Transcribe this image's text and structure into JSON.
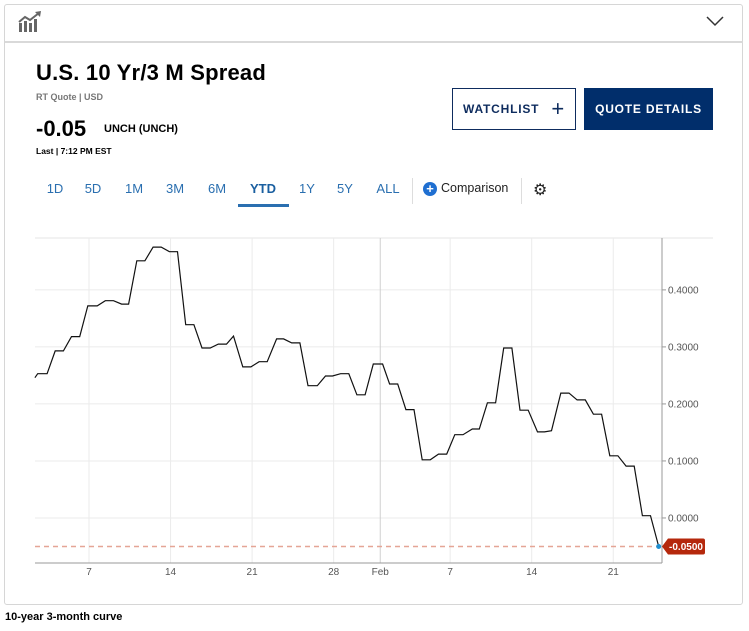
{
  "header": {
    "icon": "chart-growth-icon",
    "collapse_icon": "chevron-down-icon"
  },
  "quote": {
    "title": "U.S. 10 Yr/3 M Spread",
    "subtitle": "RT Quote | USD",
    "price": "-0.05",
    "change": "UNCH (UNCH)",
    "last": "Last | 7:12 PM EST"
  },
  "buttons": {
    "watchlist": "WATCHLIST",
    "watchlist_icon": "+",
    "quote_details": "QUOTE DETAILS"
  },
  "tabs": [
    {
      "label": "1D"
    },
    {
      "label": "5D"
    },
    {
      "label": "1M"
    },
    {
      "label": "3M"
    },
    {
      "label": "6M"
    },
    {
      "label": "YTD",
      "active": true
    },
    {
      "label": "1Y"
    },
    {
      "label": "5Y"
    },
    {
      "label": "ALL"
    }
  ],
  "comparison": {
    "label": "Comparison",
    "icon": "+"
  },
  "settings_icon": "⚙",
  "caption": "10-year 3-month curve",
  "colors": {
    "accent": "#2a6fb0",
    "navy": "#012e6b",
    "last_tag": "#b5280c",
    "dashed": "#e5a596"
  },
  "chart_data": {
    "type": "line",
    "title": "U.S. 10 Yr/3 M Spread YTD",
    "xlabel": "",
    "ylabel": "",
    "x_unit": "day of year",
    "xlim": [
      2.36,
      56.2
    ],
    "ylim": [
      -0.079,
      0.491
    ],
    "grid": true,
    "x_ticks": [
      {
        "day": 7,
        "label": "7"
      },
      {
        "day": 14,
        "label": "14"
      },
      {
        "day": 21,
        "label": "21"
      },
      {
        "day": 28,
        "label": "28"
      },
      {
        "day": 32,
        "label": "Feb"
      },
      {
        "day": 38,
        "label": "7"
      },
      {
        "day": 45,
        "label": "14"
      },
      {
        "day": 52,
        "label": "21"
      }
    ],
    "y_ticks": [
      {
        "v": 0.4,
        "label": "0.4000"
      },
      {
        "v": 0.3,
        "label": "0.3000"
      },
      {
        "v": 0.2,
        "label": "0.2000"
      },
      {
        "v": 0.1,
        "label": "0.1000"
      },
      {
        "v": 0.0,
        "label": "0.0000"
      }
    ],
    "last_value": {
      "v": -0.05,
      "label": "-0.0500"
    },
    "points": [
      [
        2.36,
        0.246
      ],
      [
        2.6,
        0.253
      ],
      [
        3.4,
        0.253
      ],
      [
        4.1,
        0.293
      ],
      [
        4.8,
        0.293
      ],
      [
        5.5,
        0.318
      ],
      [
        6.2,
        0.318
      ],
      [
        6.9,
        0.372
      ],
      [
        7.7,
        0.372
      ],
      [
        8.4,
        0.381
      ],
      [
        9.1,
        0.381
      ],
      [
        9.8,
        0.375
      ],
      [
        10.4,
        0.375
      ],
      [
        11.1,
        0.451
      ],
      [
        11.8,
        0.451
      ],
      [
        12.5,
        0.475
      ],
      [
        13.2,
        0.475
      ],
      [
        13.9,
        0.467
      ],
      [
        14.6,
        0.467
      ],
      [
        15.3,
        0.339
      ],
      [
        16.0,
        0.339
      ],
      [
        16.7,
        0.298
      ],
      [
        17.4,
        0.298
      ],
      [
        18.1,
        0.305
      ],
      [
        18.8,
        0.305
      ],
      [
        19.4,
        0.319
      ],
      [
        20.2,
        0.265
      ],
      [
        20.9,
        0.265
      ],
      [
        21.6,
        0.274
      ],
      [
        22.3,
        0.274
      ],
      [
        23.1,
        0.314
      ],
      [
        23.7,
        0.314
      ],
      [
        24.4,
        0.307
      ],
      [
        25.1,
        0.307
      ],
      [
        25.8,
        0.232
      ],
      [
        26.6,
        0.232
      ],
      [
        27.3,
        0.249
      ],
      [
        27.9,
        0.249
      ],
      [
        28.6,
        0.253
      ],
      [
        29.3,
        0.253
      ],
      [
        30.0,
        0.216
      ],
      [
        30.7,
        0.216
      ],
      [
        31.4,
        0.27
      ],
      [
        32.2,
        0.27
      ],
      [
        32.8,
        0.235
      ],
      [
        33.5,
        0.235
      ],
      [
        34.2,
        0.19
      ],
      [
        34.9,
        0.19
      ],
      [
        35.6,
        0.102
      ],
      [
        36.3,
        0.102
      ],
      [
        37.0,
        0.112
      ],
      [
        37.7,
        0.112
      ],
      [
        38.4,
        0.146
      ],
      [
        39.1,
        0.146
      ],
      [
        39.9,
        0.156
      ],
      [
        40.5,
        0.156
      ],
      [
        41.2,
        0.202
      ],
      [
        41.9,
        0.202
      ],
      [
        42.6,
        0.298
      ],
      [
        43.3,
        0.298
      ],
      [
        44.0,
        0.189
      ],
      [
        44.7,
        0.189
      ],
      [
        45.5,
        0.151
      ],
      [
        46.1,
        0.151
      ],
      [
        46.7,
        0.153
      ],
      [
        47.5,
        0.219
      ],
      [
        48.2,
        0.219
      ],
      [
        48.9,
        0.207
      ],
      [
        49.6,
        0.207
      ],
      [
        50.3,
        0.182
      ],
      [
        51.0,
        0.182
      ],
      [
        51.7,
        0.109
      ],
      [
        52.4,
        0.109
      ],
      [
        53.1,
        0.091
      ],
      [
        53.8,
        0.091
      ],
      [
        54.5,
        0.004
      ],
      [
        55.2,
        0.004
      ],
      [
        55.9,
        -0.05
      ]
    ]
  }
}
